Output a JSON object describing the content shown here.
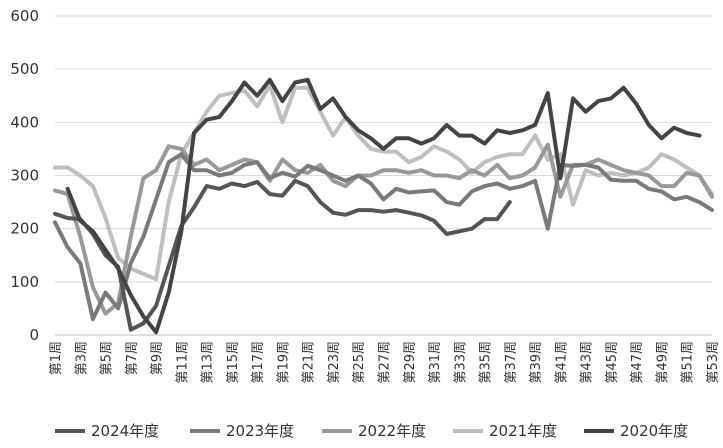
{
  "chart_data": {
    "type": "line",
    "title": "",
    "xlabel": "",
    "ylabel": "",
    "ylim": [
      0,
      600
    ],
    "yticks": [
      0,
      100,
      200,
      300,
      400,
      500,
      600
    ],
    "grid": "horizontal",
    "legend_position": "bottom",
    "x_tick_labels": [
      "第1周",
      "第3周",
      "第5周",
      "第7周",
      "第9周",
      "第11周",
      "第13周",
      "第15周",
      "第17周",
      "第19周",
      "第21周",
      "第23周",
      "第25周",
      "第27周",
      "第29周",
      "第31周",
      "第33周",
      "第35周",
      "第37周",
      "第39周",
      "第41周",
      "第43周",
      "第45周",
      "第47周",
      "第49周",
      "第51周",
      "第53周"
    ],
    "x": [
      1,
      2,
      3,
      4,
      5,
      6,
      7,
      8,
      9,
      10,
      11,
      12,
      13,
      14,
      15,
      16,
      17,
      18,
      19,
      20,
      21,
      22,
      23,
      24,
      25,
      26,
      27,
      28,
      29,
      30,
      31,
      32,
      33,
      34,
      35,
      36,
      37,
      38,
      39,
      40,
      41,
      42,
      43,
      44,
      45,
      46,
      47,
      48,
      49,
      50,
      51,
      52,
      53
    ],
    "series": [
      {
        "name": "2024年度",
        "color": "#555555",
        "width": 4,
        "values": [
          228,
          220,
          218,
          190,
          150,
          128,
          10,
          22,
          55,
          130,
          205,
          240,
          280,
          275,
          285,
          280,
          288,
          265,
          262,
          290,
          280,
          250,
          230,
          226,
          235,
          235,
          232,
          235,
          230,
          225,
          215,
          190,
          195,
          200,
          218,
          218,
          250,
          null,
          null,
          null,
          null,
          null,
          null,
          null,
          null,
          null,
          null,
          null,
          null,
          null,
          null,
          null,
          null
        ]
      },
      {
        "name": "2023年度",
        "color": "#7a7a7a",
        "width": 4,
        "values": [
          212,
          165,
          135,
          30,
          80,
          50,
          135,
          185,
          255,
          325,
          340,
          310,
          310,
          300,
          305,
          320,
          325,
          295,
          305,
          298,
          318,
          310,
          300,
          290,
          300,
          285,
          255,
          275,
          268,
          270,
          272,
          250,
          245,
          270,
          280,
          285,
          275,
          280,
          290,
          200,
          320,
          318,
          320,
          315,
          292,
          290,
          290,
          275,
          270,
          255,
          260,
          250,
          235
        ]
      },
      {
        "name": "2022年度",
        "color": "#999999",
        "width": 4,
        "values": [
          272,
          265,
          185,
          90,
          40,
          60,
          185,
          295,
          310,
          355,
          350,
          320,
          330,
          310,
          320,
          330,
          325,
          290,
          330,
          310,
          305,
          320,
          290,
          280,
          300,
          300,
          310,
          310,
          305,
          310,
          300,
          300,
          295,
          310,
          300,
          320,
          295,
          300,
          315,
          358,
          260,
          320,
          320,
          330,
          320,
          310,
          305,
          300,
          280,
          280,
          305,
          300,
          260
        ]
      },
      {
        "name": "2021年度",
        "color": "#bfbfbf",
        "width": 4,
        "values": [
          315,
          315,
          300,
          280,
          220,
          145,
          125,
          115,
          105,
          250,
          340,
          380,
          420,
          450,
          455,
          460,
          430,
          470,
          400,
          465,
          465,
          420,
          375,
          410,
          375,
          350,
          345,
          345,
          325,
          335,
          355,
          345,
          330,
          305,
          325,
          335,
          340,
          340,
          375,
          330,
          340,
          245,
          310,
          300,
          305,
          300,
          305,
          315,
          340,
          330,
          315,
          300,
          265
        ]
      },
      {
        "name": "2020年度",
        "color": "#444444",
        "width": 4,
        "values": [
          null,
          275,
          215,
          195,
          160,
          125,
          75,
          35,
          5,
          80,
          195,
          380,
          405,
          410,
          440,
          475,
          450,
          480,
          440,
          475,
          480,
          425,
          445,
          410,
          385,
          370,
          350,
          370,
          370,
          360,
          370,
          395,
          375,
          375,
          360,
          385,
          380,
          385,
          395,
          455,
          295,
          445,
          420,
          440,
          445,
          465,
          435,
          395,
          370,
          390,
          380,
          375,
          null
        ]
      }
    ]
  }
}
